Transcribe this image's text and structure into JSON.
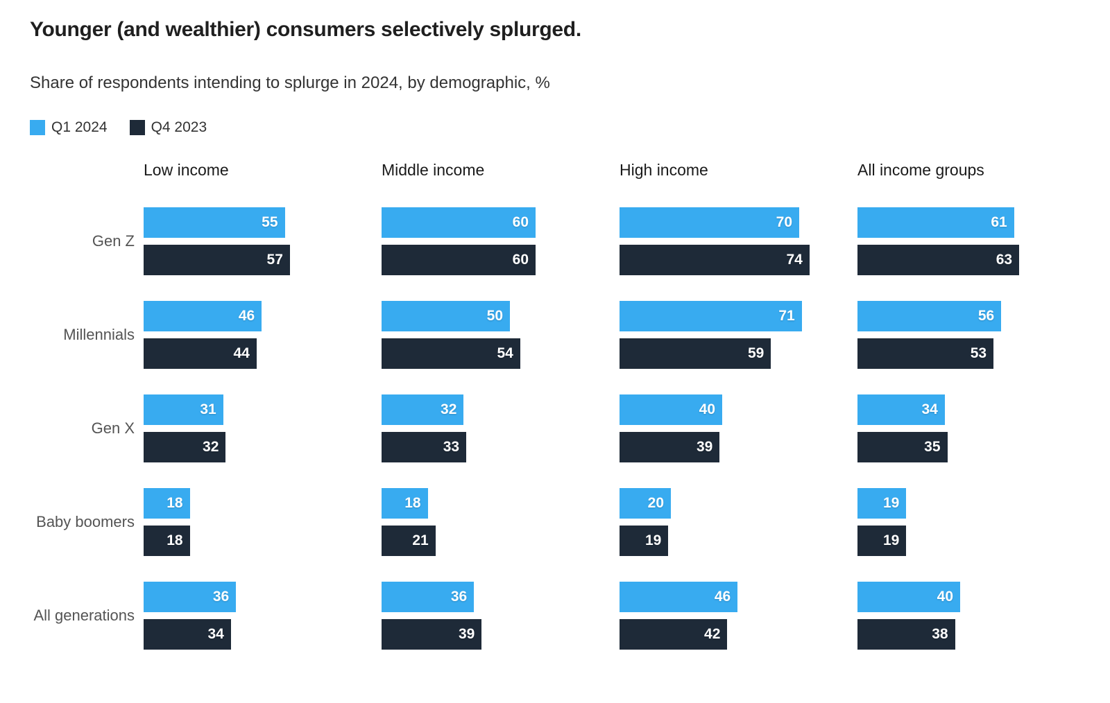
{
  "header": {
    "title": "Younger (and wealthier) consumers selectively splurged.",
    "subtitle": "Share of respondents intending to splurge in 2024, by demographic, %"
  },
  "legend": [
    {
      "label": "Q1 2024",
      "color": "#38ABF0"
    },
    {
      "label": "Q4 2023",
      "color": "#1E2A38"
    }
  ],
  "chart_data": {
    "type": "bar",
    "orientation": "horizontal",
    "title": "Younger (and wealthier) consumers selectively splurged.",
    "subtitle": "Share of respondents intending to splurge in 2024, by demographic, %",
    "value_unit": "%",
    "xlim": [
      0,
      80
    ],
    "grid": false,
    "legend_position": "top-left",
    "value_labels": "inside-end",
    "categories": [
      "Gen Z",
      "Millennials",
      "Gen X",
      "Baby boomers",
      "All generations"
    ],
    "groups": [
      {
        "label": "Low income",
        "series": [
          {
            "name": "Q1 2024",
            "color": "#38ABF0",
            "values": [
              55,
              46,
              31,
              18,
              36
            ]
          },
          {
            "name": "Q4 2023",
            "color": "#1E2A38",
            "values": [
              57,
              44,
              32,
              18,
              34
            ]
          }
        ]
      },
      {
        "label": "Middle income",
        "series": [
          {
            "name": "Q1 2024",
            "color": "#38ABF0",
            "values": [
              60,
              50,
              32,
              18,
              36
            ]
          },
          {
            "name": "Q4 2023",
            "color": "#1E2A38",
            "values": [
              60,
              54,
              33,
              21,
              39
            ]
          }
        ]
      },
      {
        "label": "High income",
        "series": [
          {
            "name": "Q1 2024",
            "color": "#38ABF0",
            "values": [
              70,
              71,
              40,
              20,
              46
            ]
          },
          {
            "name": "Q4 2023",
            "color": "#1E2A38",
            "values": [
              74,
              59,
              39,
              19,
              42
            ]
          }
        ]
      },
      {
        "label": "All income groups",
        "series": [
          {
            "name": "Q1 2024",
            "color": "#38ABF0",
            "values": [
              61,
              56,
              34,
              19,
              40
            ]
          },
          {
            "name": "Q4 2023",
            "color": "#1E2A38",
            "values": [
              63,
              53,
              35,
              19,
              38
            ]
          }
        ]
      }
    ]
  }
}
